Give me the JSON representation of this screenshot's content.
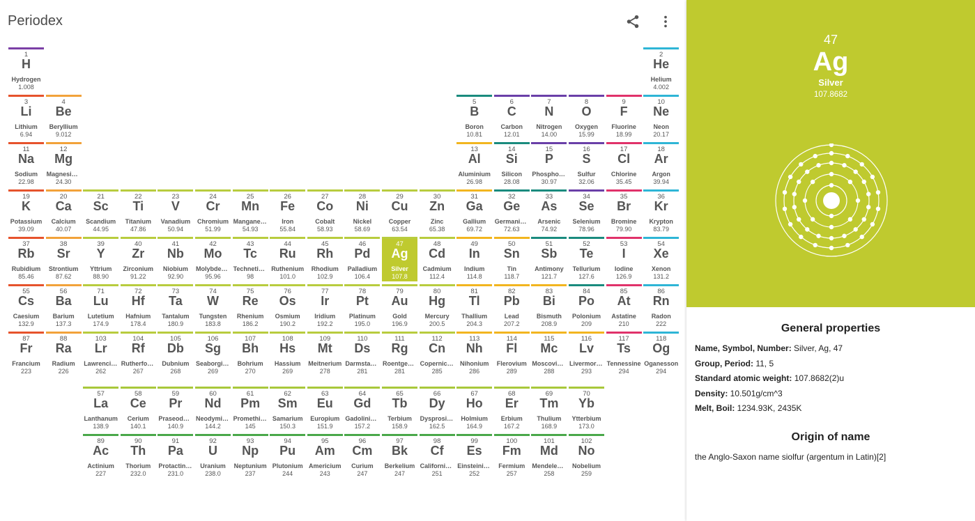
{
  "app": {
    "title": "Periodex"
  },
  "toolbar": {
    "share_icon": "share-icon",
    "more_icon": "more-vert-icon"
  },
  "colors": {
    "hydrogen": "#7b3fa6",
    "alkali": "#e6532c",
    "alkaline": "#f2a23a",
    "transition": "#b8cc3e",
    "post": "#f2b51f",
    "metalloid": "#1a8b7e",
    "nonmetal": "#6a3fa8",
    "halogen": "#e0326a",
    "noble": "#2eb5d6",
    "lanthanide": "#a8c83a",
    "actinide": "#4aa84a",
    "selected_bg": "#bfca2f"
  },
  "elements": [
    {
      "n": "1",
      "s": "H",
      "name": "Hydrogen",
      "w": "1.008",
      "c": "hydrogen",
      "col": 1,
      "row": 1
    },
    {
      "n": "2",
      "s": "He",
      "name": "Helium",
      "w": "4.002",
      "c": "noble",
      "col": 18,
      "row": 1
    },
    {
      "n": "3",
      "s": "Li",
      "name": "Lithium",
      "w": "6.94",
      "c": "alkali",
      "col": 1,
      "row": 2
    },
    {
      "n": "4",
      "s": "Be",
      "name": "Beryllium",
      "w": "9.012",
      "c": "alkaline",
      "col": 2,
      "row": 2
    },
    {
      "n": "5",
      "s": "B",
      "name": "Boron",
      "w": "10.81",
      "c": "metalloid",
      "col": 13,
      "row": 2
    },
    {
      "n": "6",
      "s": "C",
      "name": "Carbon",
      "w": "12.01",
      "c": "nonmetal",
      "col": 14,
      "row": 2
    },
    {
      "n": "7",
      "s": "N",
      "name": "Nitrogen",
      "w": "14.00",
      "c": "nonmetal",
      "col": 15,
      "row": 2
    },
    {
      "n": "8",
      "s": "O",
      "name": "Oxygen",
      "w": "15.99",
      "c": "nonmetal",
      "col": 16,
      "row": 2
    },
    {
      "n": "9",
      "s": "F",
      "name": "Fluorine",
      "w": "18.99",
      "c": "halogen",
      "col": 17,
      "row": 2
    },
    {
      "n": "10",
      "s": "Ne",
      "name": "Neon",
      "w": "20.17",
      "c": "noble",
      "col": 18,
      "row": 2
    },
    {
      "n": "11",
      "s": "Na",
      "name": "Sodium",
      "w": "22.98",
      "c": "alkali",
      "col": 1,
      "row": 3
    },
    {
      "n": "12",
      "s": "Mg",
      "name": "Magnesium",
      "w": "24.30",
      "c": "alkaline",
      "col": 2,
      "row": 3
    },
    {
      "n": "13",
      "s": "Al",
      "name": "Aluminium",
      "w": "26.98",
      "c": "post",
      "col": 13,
      "row": 3
    },
    {
      "n": "14",
      "s": "Si",
      "name": "Silicon",
      "w": "28.08",
      "c": "metalloid",
      "col": 14,
      "row": 3
    },
    {
      "n": "15",
      "s": "P",
      "name": "Phosphorus",
      "w": "30.97",
      "c": "nonmetal",
      "col": 15,
      "row": 3
    },
    {
      "n": "16",
      "s": "S",
      "name": "Sulfur",
      "w": "32.06",
      "c": "nonmetal",
      "col": 16,
      "row": 3
    },
    {
      "n": "17",
      "s": "Cl",
      "name": "Chlorine",
      "w": "35.45",
      "c": "halogen",
      "col": 17,
      "row": 3
    },
    {
      "n": "18",
      "s": "Ar",
      "name": "Argon",
      "w": "39.94",
      "c": "noble",
      "col": 18,
      "row": 3
    },
    {
      "n": "19",
      "s": "K",
      "name": "Potassium",
      "w": "39.09",
      "c": "alkali",
      "col": 1,
      "row": 4
    },
    {
      "n": "20",
      "s": "Ca",
      "name": "Calcium",
      "w": "40.07",
      "c": "alkaline",
      "col": 2,
      "row": 4
    },
    {
      "n": "21",
      "s": "Sc",
      "name": "Scandium",
      "w": "44.95",
      "c": "transition",
      "col": 3,
      "row": 4
    },
    {
      "n": "22",
      "s": "Ti",
      "name": "Titanium",
      "w": "47.86",
      "c": "transition",
      "col": 4,
      "row": 4
    },
    {
      "n": "23",
      "s": "V",
      "name": "Vanadium",
      "w": "50.94",
      "c": "transition",
      "col": 5,
      "row": 4
    },
    {
      "n": "24",
      "s": "Cr",
      "name": "Chromium",
      "w": "51.99",
      "c": "transition",
      "col": 6,
      "row": 4
    },
    {
      "n": "25",
      "s": "Mn",
      "name": "Manganese",
      "w": "54.93",
      "c": "transition",
      "col": 7,
      "row": 4
    },
    {
      "n": "26",
      "s": "Fe",
      "name": "Iron",
      "w": "55.84",
      "c": "transition",
      "col": 8,
      "row": 4
    },
    {
      "n": "27",
      "s": "Co",
      "name": "Cobalt",
      "w": "58.93",
      "c": "transition",
      "col": 9,
      "row": 4
    },
    {
      "n": "28",
      "s": "Ni",
      "name": "Nickel",
      "w": "58.69",
      "c": "transition",
      "col": 10,
      "row": 4
    },
    {
      "n": "29",
      "s": "Cu",
      "name": "Copper",
      "w": "63.54",
      "c": "transition",
      "col": 11,
      "row": 4
    },
    {
      "n": "30",
      "s": "Zn",
      "name": "Zinc",
      "w": "65.38",
      "c": "transition",
      "col": 12,
      "row": 4
    },
    {
      "n": "31",
      "s": "Ga",
      "name": "Gallium",
      "w": "69.72",
      "c": "post",
      "col": 13,
      "row": 4
    },
    {
      "n": "32",
      "s": "Ge",
      "name": "Germanium",
      "w": "72.63",
      "c": "metalloid",
      "col": 14,
      "row": 4
    },
    {
      "n": "33",
      "s": "As",
      "name": "Arsenic",
      "w": "74.92",
      "c": "metalloid",
      "col": 15,
      "row": 4
    },
    {
      "n": "34",
      "s": "Se",
      "name": "Selenium",
      "w": "78.96",
      "c": "nonmetal",
      "col": 16,
      "row": 4
    },
    {
      "n": "35",
      "s": "Br",
      "name": "Bromine",
      "w": "79.90",
      "c": "halogen",
      "col": 17,
      "row": 4
    },
    {
      "n": "36",
      "s": "Kr",
      "name": "Krypton",
      "w": "83.79",
      "c": "noble",
      "col": 18,
      "row": 4
    },
    {
      "n": "37",
      "s": "Rb",
      "name": "Rubidium",
      "w": "85.46",
      "c": "alkali",
      "col": 1,
      "row": 5
    },
    {
      "n": "38",
      "s": "Sr",
      "name": "Strontium",
      "w": "87.62",
      "c": "alkaline",
      "col": 2,
      "row": 5
    },
    {
      "n": "39",
      "s": "Y",
      "name": "Yttrium",
      "w": "88.90",
      "c": "transition",
      "col": 3,
      "row": 5
    },
    {
      "n": "40",
      "s": "Zr",
      "name": "Zirconium",
      "w": "91.22",
      "c": "transition",
      "col": 4,
      "row": 5
    },
    {
      "n": "41",
      "s": "Nb",
      "name": "Niobium",
      "w": "92.90",
      "c": "transition",
      "col": 5,
      "row": 5
    },
    {
      "n": "42",
      "s": "Mo",
      "name": "Molybdenum",
      "w": "95.96",
      "c": "transition",
      "col": 6,
      "row": 5
    },
    {
      "n": "43",
      "s": "Tc",
      "name": "Technetium",
      "w": "98",
      "c": "transition",
      "col": 7,
      "row": 5
    },
    {
      "n": "44",
      "s": "Ru",
      "name": "Ruthenium",
      "w": "101.0",
      "c": "transition",
      "col": 8,
      "row": 5
    },
    {
      "n": "45",
      "s": "Rh",
      "name": "Rhodium",
      "w": "102.9",
      "c": "transition",
      "col": 9,
      "row": 5
    },
    {
      "n": "46",
      "s": "Pd",
      "name": "Palladium",
      "w": "106.4",
      "c": "transition",
      "col": 10,
      "row": 5
    },
    {
      "n": "47",
      "s": "Ag",
      "name": "Silver",
      "w": "107.8",
      "c": "transition",
      "col": 11,
      "row": 5,
      "selected": true
    },
    {
      "n": "48",
      "s": "Cd",
      "name": "Cadmium",
      "w": "112.4",
      "c": "transition",
      "col": 12,
      "row": 5
    },
    {
      "n": "49",
      "s": "In",
      "name": "Indium",
      "w": "114.8",
      "c": "post",
      "col": 13,
      "row": 5
    },
    {
      "n": "50",
      "s": "Sn",
      "name": "Tin",
      "w": "118.7",
      "c": "post",
      "col": 14,
      "row": 5
    },
    {
      "n": "51",
      "s": "Sb",
      "name": "Antimony",
      "w": "121.7",
      "c": "metalloid",
      "col": 15,
      "row": 5
    },
    {
      "n": "52",
      "s": "Te",
      "name": "Tellurium",
      "w": "127.6",
      "c": "metalloid",
      "col": 16,
      "row": 5
    },
    {
      "n": "53",
      "s": "I",
      "name": "Iodine",
      "w": "126.9",
      "c": "halogen",
      "col": 17,
      "row": 5
    },
    {
      "n": "54",
      "s": "Xe",
      "name": "Xenon",
      "w": "131.2",
      "c": "noble",
      "col": 18,
      "row": 5
    },
    {
      "n": "55",
      "s": "Cs",
      "name": "Caesium",
      "w": "132.9",
      "c": "alkali",
      "col": 1,
      "row": 6
    },
    {
      "n": "56",
      "s": "Ba",
      "name": "Barium",
      "w": "137.3",
      "c": "alkaline",
      "col": 2,
      "row": 6
    },
    {
      "n": "71",
      "s": "Lu",
      "name": "Lutetium",
      "w": "174.9",
      "c": "transition",
      "col": 3,
      "row": 6
    },
    {
      "n": "72",
      "s": "Hf",
      "name": "Hafnium",
      "w": "178.4",
      "c": "transition",
      "col": 4,
      "row": 6
    },
    {
      "n": "73",
      "s": "Ta",
      "name": "Tantalum",
      "w": "180.9",
      "c": "transition",
      "col": 5,
      "row": 6
    },
    {
      "n": "74",
      "s": "W",
      "name": "Tungsten",
      "w": "183.8",
      "c": "transition",
      "col": 6,
      "row": 6
    },
    {
      "n": "75",
      "s": "Re",
      "name": "Rhenium",
      "w": "186.2",
      "c": "transition",
      "col": 7,
      "row": 6
    },
    {
      "n": "76",
      "s": "Os",
      "name": "Osmium",
      "w": "190.2",
      "c": "transition",
      "col": 8,
      "row": 6
    },
    {
      "n": "77",
      "s": "Ir",
      "name": "Iridium",
      "w": "192.2",
      "c": "transition",
      "col": 9,
      "row": 6
    },
    {
      "n": "78",
      "s": "Pt",
      "name": "Platinum",
      "w": "195.0",
      "c": "transition",
      "col": 10,
      "row": 6
    },
    {
      "n": "79",
      "s": "Au",
      "name": "Gold",
      "w": "196.9",
      "c": "transition",
      "col": 11,
      "row": 6
    },
    {
      "n": "80",
      "s": "Hg",
      "name": "Mercury",
      "w": "200.5",
      "c": "transition",
      "col": 12,
      "row": 6
    },
    {
      "n": "81",
      "s": "Tl",
      "name": "Thallium",
      "w": "204.3",
      "c": "post",
      "col": 13,
      "row": 6
    },
    {
      "n": "82",
      "s": "Pb",
      "name": "Lead",
      "w": "207.2",
      "c": "post",
      "col": 14,
      "row": 6
    },
    {
      "n": "83",
      "s": "Bi",
      "name": "Bismuth",
      "w": "208.9",
      "c": "post",
      "col": 15,
      "row": 6
    },
    {
      "n": "84",
      "s": "Po",
      "name": "Polonium",
      "w": "209",
      "c": "metalloid",
      "col": 16,
      "row": 6
    },
    {
      "n": "85",
      "s": "At",
      "name": "Astatine",
      "w": "210",
      "c": "halogen",
      "col": 17,
      "row": 6
    },
    {
      "n": "86",
      "s": "Rn",
      "name": "Radon",
      "w": "222",
      "c": "noble",
      "col": 18,
      "row": 6
    },
    {
      "n": "87",
      "s": "Fr",
      "name": "Francium",
      "w": "223",
      "c": "alkali",
      "col": 1,
      "row": 7
    },
    {
      "n": "88",
      "s": "Ra",
      "name": "Radium",
      "w": "226",
      "c": "alkaline",
      "col": 2,
      "row": 7
    },
    {
      "n": "103",
      "s": "Lr",
      "name": "Lawrencium",
      "w": "262",
      "c": "transition",
      "col": 3,
      "row": 7
    },
    {
      "n": "104",
      "s": "Rf",
      "name": "Rutherfordium",
      "w": "267",
      "c": "transition",
      "col": 4,
      "row": 7
    },
    {
      "n": "105",
      "s": "Db",
      "name": "Dubnium",
      "w": "268",
      "c": "transition",
      "col": 5,
      "row": 7
    },
    {
      "n": "106",
      "s": "Sg",
      "name": "Seaborgium",
      "w": "269",
      "c": "transition",
      "col": 6,
      "row": 7
    },
    {
      "n": "107",
      "s": "Bh",
      "name": "Bohrium",
      "w": "270",
      "c": "transition",
      "col": 7,
      "row": 7
    },
    {
      "n": "108",
      "s": "Hs",
      "name": "Hassium",
      "w": "269",
      "c": "transition",
      "col": 8,
      "row": 7
    },
    {
      "n": "109",
      "s": "Mt",
      "name": "Meitnerium",
      "w": "278",
      "c": "transition",
      "col": 9,
      "row": 7
    },
    {
      "n": "110",
      "s": "Ds",
      "name": "Darmstadtium",
      "w": "281",
      "c": "transition",
      "col": 10,
      "row": 7
    },
    {
      "n": "111",
      "s": "Rg",
      "name": "Roentgenium",
      "w": "281",
      "c": "transition",
      "col": 11,
      "row": 7
    },
    {
      "n": "112",
      "s": "Cn",
      "name": "Copernicium",
      "w": "285",
      "c": "transition",
      "col": 12,
      "row": 7
    },
    {
      "n": "113",
      "s": "Nh",
      "name": "Nihonium",
      "w": "286",
      "c": "post",
      "col": 13,
      "row": 7
    },
    {
      "n": "114",
      "s": "Fl",
      "name": "Flerovium",
      "w": "289",
      "c": "post",
      "col": 14,
      "row": 7
    },
    {
      "n": "115",
      "s": "Mc",
      "name": "Moscovium",
      "w": "288",
      "c": "post",
      "col": 15,
      "row": 7
    },
    {
      "n": "116",
      "s": "Lv",
      "name": "Livermorium",
      "w": "293",
      "c": "post",
      "col": 16,
      "row": 7
    },
    {
      "n": "117",
      "s": "Ts",
      "name": "Tennessine",
      "w": "294",
      "c": "halogen",
      "col": 17,
      "row": 7
    },
    {
      "n": "118",
      "s": "Og",
      "name": "Oganesson",
      "w": "294",
      "c": "noble",
      "col": 18,
      "row": 7
    },
    {
      "n": "57",
      "s": "La",
      "name": "Lanthanum",
      "w": "138.9",
      "c": "lanthanide",
      "col": 3,
      "row": 9
    },
    {
      "n": "58",
      "s": "Ce",
      "name": "Cerium",
      "w": "140.1",
      "c": "lanthanide",
      "col": 4,
      "row": 9
    },
    {
      "n": "59",
      "s": "Pr",
      "name": "Praseodymium",
      "w": "140.9",
      "c": "lanthanide",
      "col": 5,
      "row": 9
    },
    {
      "n": "60",
      "s": "Nd",
      "name": "Neodymium",
      "w": "144.2",
      "c": "lanthanide",
      "col": 6,
      "row": 9
    },
    {
      "n": "61",
      "s": "Pm",
      "name": "Promethium",
      "w": "145",
      "c": "lanthanide",
      "col": 7,
      "row": 9
    },
    {
      "n": "62",
      "s": "Sm",
      "name": "Samarium",
      "w": "150.3",
      "c": "lanthanide",
      "col": 8,
      "row": 9
    },
    {
      "n": "63",
      "s": "Eu",
      "name": "Europium",
      "w": "151.9",
      "c": "lanthanide",
      "col": 9,
      "row": 9
    },
    {
      "n": "64",
      "s": "Gd",
      "name": "Gadolinium",
      "w": "157.2",
      "c": "lanthanide",
      "col": 10,
      "row": 9
    },
    {
      "n": "65",
      "s": "Tb",
      "name": "Terbium",
      "w": "158.9",
      "c": "lanthanide",
      "col": 11,
      "row": 9
    },
    {
      "n": "66",
      "s": "Dy",
      "name": "Dysprosium",
      "w": "162.5",
      "c": "lanthanide",
      "col": 12,
      "row": 9
    },
    {
      "n": "67",
      "s": "Ho",
      "name": "Holmium",
      "w": "164.9",
      "c": "lanthanide",
      "col": 13,
      "row": 9
    },
    {
      "n": "68",
      "s": "Er",
      "name": "Erbium",
      "w": "167.2",
      "c": "lanthanide",
      "col": 14,
      "row": 9
    },
    {
      "n": "69",
      "s": "Tm",
      "name": "Thulium",
      "w": "168.9",
      "c": "lanthanide",
      "col": 15,
      "row": 9
    },
    {
      "n": "70",
      "s": "Yb",
      "name": "Ytterbium",
      "w": "173.0",
      "c": "lanthanide",
      "col": 16,
      "row": 9
    },
    {
      "n": "89",
      "s": "Ac",
      "name": "Actinium",
      "w": "227",
      "c": "actinide",
      "col": 3,
      "row": 10
    },
    {
      "n": "90",
      "s": "Th",
      "name": "Thorium",
      "w": "232.0",
      "c": "actinide",
      "col": 4,
      "row": 10
    },
    {
      "n": "91",
      "s": "Pa",
      "name": "Protactinium",
      "w": "231.0",
      "c": "actinide",
      "col": 5,
      "row": 10
    },
    {
      "n": "92",
      "s": "U",
      "name": "Uranium",
      "w": "238.0",
      "c": "actinide",
      "col": 6,
      "row": 10
    },
    {
      "n": "93",
      "s": "Np",
      "name": "Neptunium",
      "w": "237",
      "c": "actinide",
      "col": 7,
      "row": 10
    },
    {
      "n": "94",
      "s": "Pu",
      "name": "Plutonium",
      "w": "244",
      "c": "actinide",
      "col": 8,
      "row": 10
    },
    {
      "n": "95",
      "s": "Am",
      "name": "Americium",
      "w": "243",
      "c": "actinide",
      "col": 9,
      "row": 10
    },
    {
      "n": "96",
      "s": "Cm",
      "name": "Curium",
      "w": "247",
      "c": "actinide",
      "col": 10,
      "row": 10
    },
    {
      "n": "97",
      "s": "Bk",
      "name": "Berkelium",
      "w": "247",
      "c": "actinide",
      "col": 11,
      "row": 10
    },
    {
      "n": "98",
      "s": "Cf",
      "name": "Californium",
      "w": "251",
      "c": "actinide",
      "col": 12,
      "row": 10
    },
    {
      "n": "99",
      "s": "Es",
      "name": "Einsteinium",
      "w": "252",
      "c": "actinide",
      "col": 13,
      "row": 10
    },
    {
      "n": "100",
      "s": "Fm",
      "name": "Fermium",
      "w": "257",
      "c": "actinide",
      "col": 14,
      "row": 10
    },
    {
      "n": "101",
      "s": "Md",
      "name": "Mendelevium",
      "w": "258",
      "c": "actinide",
      "col": 15,
      "row": 10
    },
    {
      "n": "102",
      "s": "No",
      "name": "Nobelium",
      "w": "259",
      "c": "actinide",
      "col": 16,
      "row": 10
    }
  ],
  "detail": {
    "number": "47",
    "symbol": "Ag",
    "name": "Silver",
    "weight": "107.8682",
    "shells": [
      2,
      8,
      18,
      18,
      1
    ],
    "general_title": "General properties",
    "properties": [
      {
        "label": "Name, Symbol, Number:",
        "value": "Silver, Ag, 47"
      },
      {
        "label": "Group, Period:",
        "value": "11, 5"
      },
      {
        "label": "Standard atomic weight:",
        "value": "107.8682(2)u"
      },
      {
        "label": "Density:",
        "value": "10.501g/cm^3"
      },
      {
        "label": "Melt, Boil:",
        "value": "1234.93K, 2435K"
      }
    ],
    "origin_title": "Origin of name",
    "origin_text": "the Anglo-Saxon name siolfur (argentum in Latin)[2]"
  }
}
